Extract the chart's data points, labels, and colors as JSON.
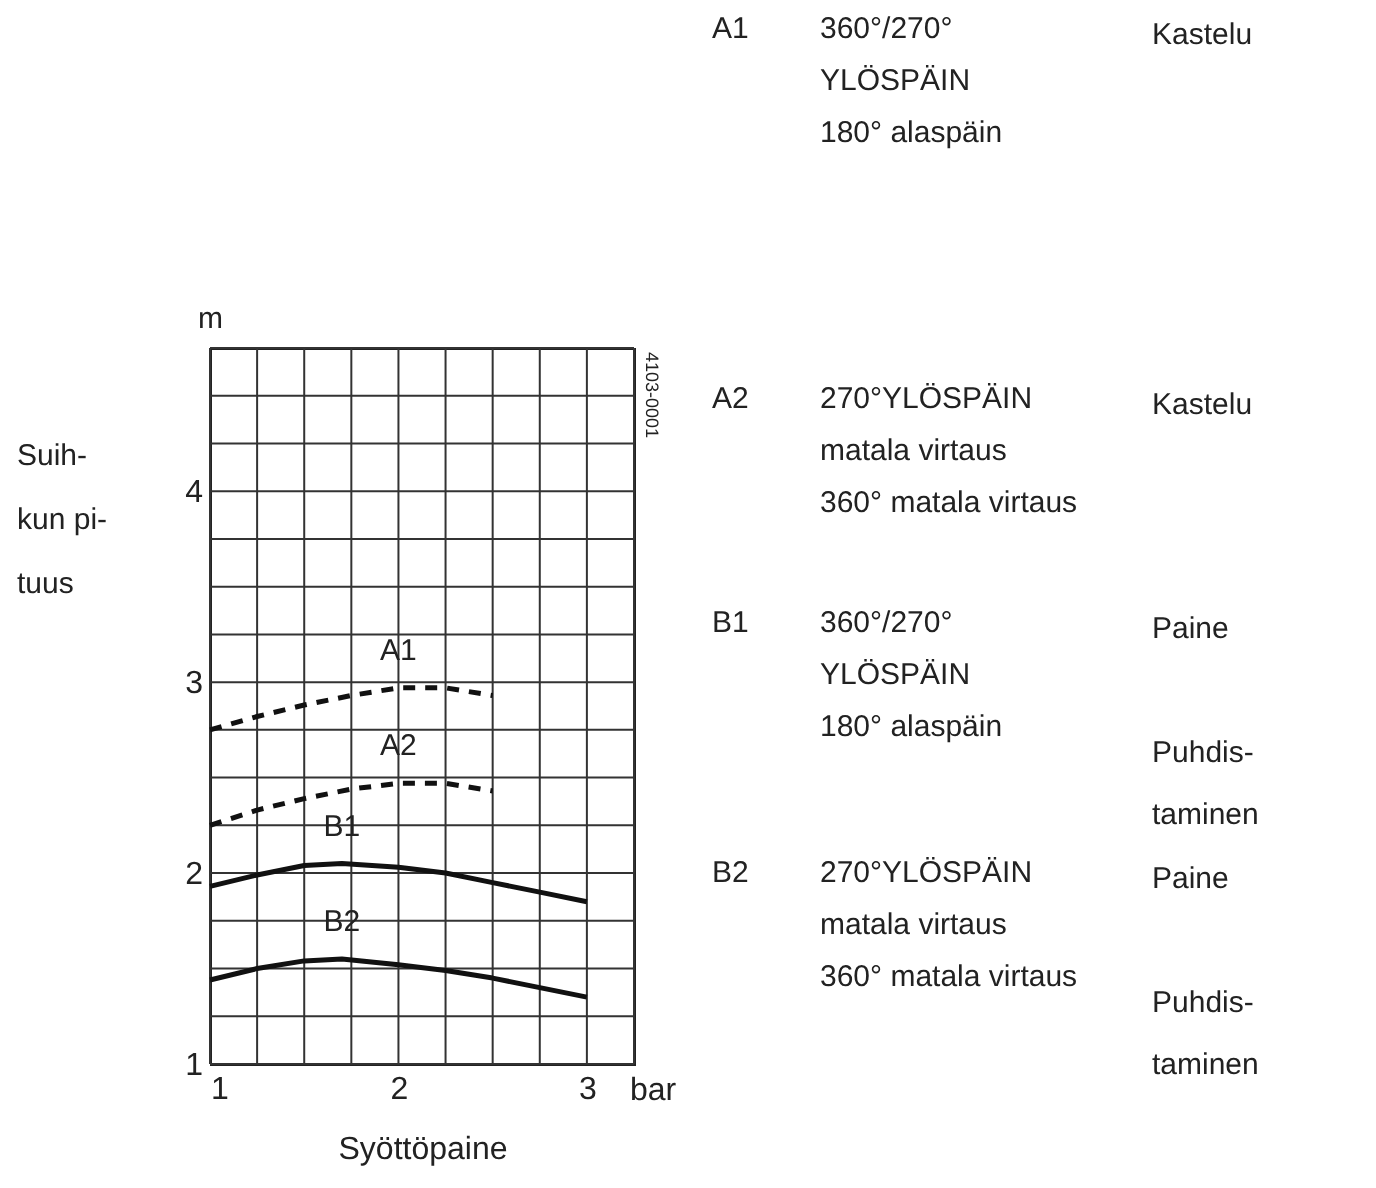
{
  "chart_data": {
    "type": "line",
    "xlabel": "Syöttöpaine",
    "ylabel": "Suih-\nkun pi-\ntuus",
    "xlim": [
      1,
      3.25
    ],
    "ylim": [
      1,
      4.75
    ],
    "xticks": [
      1,
      {
        "value": 1.25,
        "label": null
      },
      {
        "value": 1.5,
        "label": null
      },
      {
        "value": 1.75,
        "label": null
      },
      2,
      {
        "value": 2.25,
        "label": null
      },
      {
        "value": 2.5,
        "label": null
      },
      {
        "value": 2.75,
        "label": null
      },
      3,
      {
        "value": 3.25,
        "label": null
      }
    ],
    "yticks": [
      1,
      {
        "value": 1.25,
        "label": null
      },
      {
        "value": 1.5,
        "label": null
      },
      {
        "value": 1.75,
        "label": null
      },
      2,
      {
        "value": 2.25,
        "label": null
      },
      {
        "value": 2.5,
        "label": null
      },
      {
        "value": 2.75,
        "label": null
      },
      3,
      {
        "value": 3.25,
        "label": null
      },
      {
        "value": 3.5,
        "label": null
      },
      {
        "value": 3.75,
        "label": null
      },
      4,
      {
        "value": 4.25,
        "label": null
      },
      {
        "value": 4.5,
        "label": null
      },
      {
        "value": 4.75,
        "label": null
      }
    ],
    "grid": true,
    "marker": "none",
    "series": [
      {
        "name": "A1",
        "color": "#111111",
        "line_style": "dashed",
        "x": [
          1,
          1.25,
          1.5,
          1.75,
          2,
          2.25,
          2.5
        ],
        "values": [
          2.75,
          2.82,
          2.88,
          2.93,
          2.97,
          2.97,
          2.93
        ]
      },
      {
        "name": "A2",
        "color": "#111111",
        "line_style": "dashed",
        "x": [
          1,
          1.25,
          1.5,
          1.75,
          2,
          2.25,
          2.5
        ],
        "values": [
          2.25,
          2.33,
          2.39,
          2.44,
          2.47,
          2.47,
          2.43
        ]
      },
      {
        "name": "B1",
        "color": "#111111",
        "line_style": "solid",
        "x": [
          1,
          1.25,
          1.5,
          1.7,
          2,
          2.25,
          2.5,
          2.75,
          3
        ],
        "values": [
          1.93,
          1.99,
          2.04,
          2.05,
          2.03,
          2,
          1.95,
          1.9,
          1.85
        ]
      },
      {
        "name": "B2",
        "color": "#111111",
        "line_style": "solid",
        "x": [
          1,
          1.25,
          1.5,
          1.7,
          2,
          2.25,
          2.5,
          2.75,
          3
        ],
        "values": [
          1.44,
          1.5,
          1.54,
          1.55,
          1.52,
          1.49,
          1.45,
          1.4,
          1.35
        ]
      }
    ],
    "annotations": [
      "4103-0001",
      "m",
      "bar",
      "A1",
      "360°/270°\nYLÖSPÄIN\n180° alaspäin",
      "Kastelu",
      "A2",
      "270°YLÖSPÄIN\nmatala virtaus\n360° matala virtaus",
      "Kastelu",
      "B1",
      "360°/270°\nYLÖSPÄIN\n180° alaspäin",
      "Paine\n\nPuhdis-\ntaminen",
      "B2",
      "270°YLÖSPÄIN\nmatala virtaus\n360° matala virtaus",
      "Paine\n\nPuhdis-\ntaminen"
    ]
  }
}
